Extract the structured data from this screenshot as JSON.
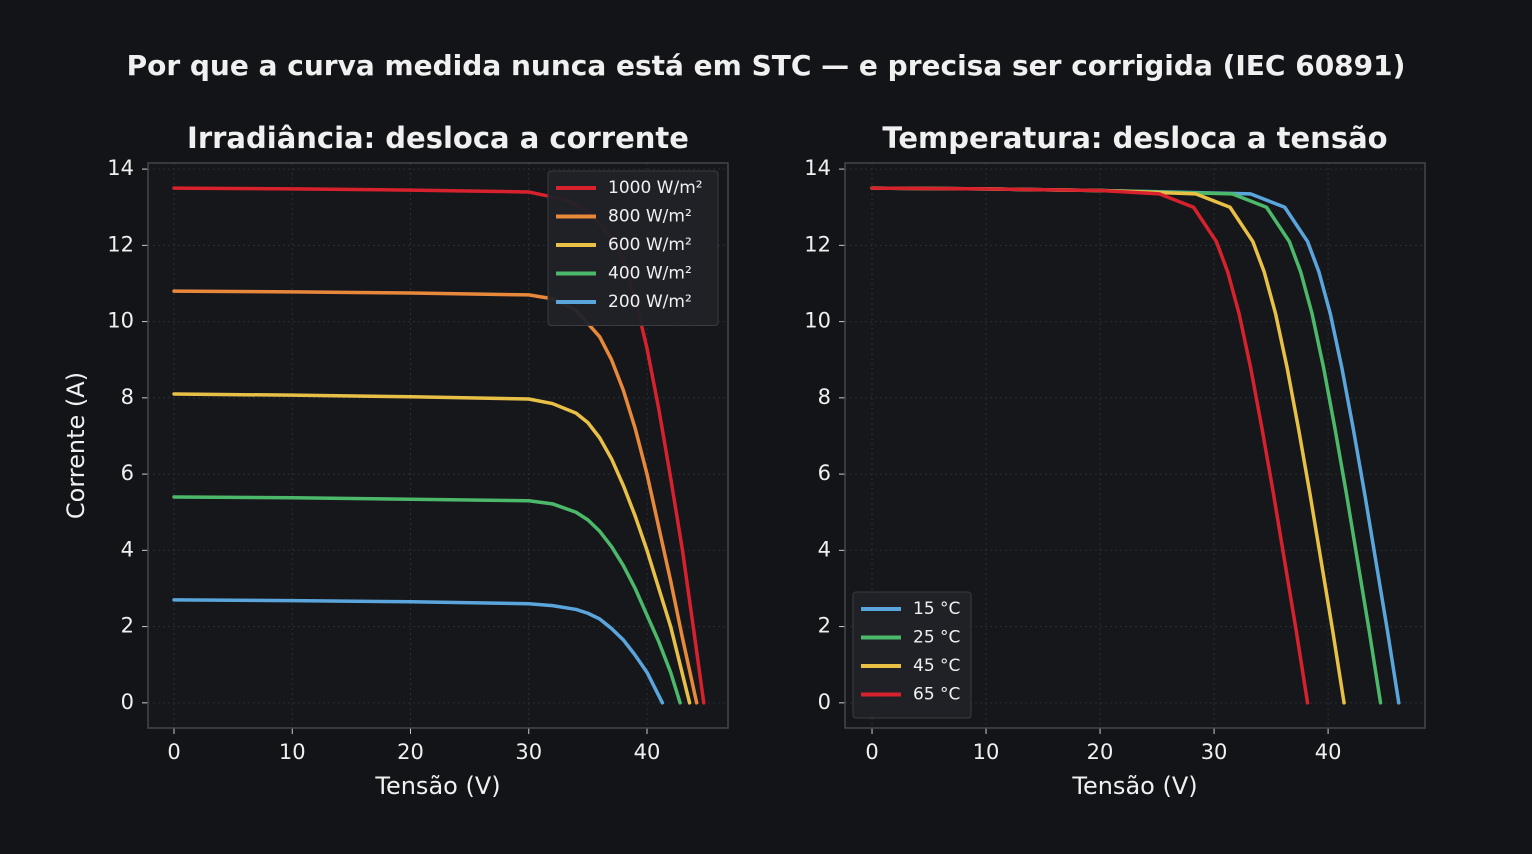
{
  "title": "Por que a curva medida nunca está em STC — e precisa ser corrigida (IEC 60891)",
  "chart_data": [
    {
      "type": "line",
      "title": "Irradiância: desloca a corrente",
      "x_label": "Tensão (V)",
      "y_label": "Corrente (A)",
      "xlim": [
        -2.2,
        46.85
      ],
      "ylim": [
        -0.66,
        14.16
      ],
      "xticks": [
        0,
        10,
        20,
        30,
        40
      ],
      "yticks": [
        0,
        2,
        4,
        6,
        8,
        10,
        12,
        14
      ],
      "grid": true,
      "legend": "upper right",
      "series": [
        {
          "name": "1000 W/m²",
          "color": "#d7222e",
          "x": [
            0,
            10,
            20,
            30,
            33,
            35,
            37,
            38,
            39,
            40,
            41,
            42,
            43,
            44,
            44.8
          ],
          "values": [
            13.5,
            13.48,
            13.45,
            13.4,
            13.2,
            12.9,
            12.2,
            11.6,
            10.6,
            9.3,
            7.7,
            5.9,
            4.0,
            1.8,
            0
          ]
        },
        {
          "name": "800 W/m²",
          "color": "#e8883a",
          "x": [
            0,
            10,
            20,
            30,
            32,
            34,
            36,
            37,
            38,
            39,
            40,
            41,
            42,
            43,
            44.2
          ],
          "values": [
            10.8,
            10.78,
            10.75,
            10.7,
            10.6,
            10.3,
            9.6,
            9.0,
            8.2,
            7.2,
            6.0,
            4.6,
            3.2,
            1.7,
            0
          ]
        },
        {
          "name": "600 W/m²",
          "color": "#e9c046",
          "x": [
            0,
            10,
            20,
            30,
            32,
            34,
            35,
            36,
            37,
            38,
            39,
            40,
            41,
            42,
            43.6
          ],
          "values": [
            8.1,
            8.07,
            8.03,
            7.97,
            7.85,
            7.6,
            7.35,
            6.95,
            6.4,
            5.7,
            4.9,
            4.0,
            3.0,
            2.0,
            0
          ]
        },
        {
          "name": "400 W/m²",
          "color": "#4cb96a",
          "x": [
            0,
            10,
            20,
            30,
            32,
            34,
            35,
            36,
            37,
            38,
            39,
            40,
            41,
            42,
            42.8
          ],
          "values": [
            5.4,
            5.38,
            5.34,
            5.3,
            5.22,
            5.0,
            4.8,
            4.5,
            4.1,
            3.6,
            3.0,
            2.3,
            1.6,
            0.8,
            0
          ]
        },
        {
          "name": "200 W/m²",
          "color": "#5aa6dc",
          "x": [
            0,
            10,
            20,
            30,
            32,
            34,
            35,
            36,
            37,
            38,
            39,
            40,
            41.3
          ],
          "values": [
            2.7,
            2.68,
            2.65,
            2.6,
            2.55,
            2.45,
            2.35,
            2.2,
            1.95,
            1.65,
            1.25,
            0.8,
            0
          ]
        }
      ]
    },
    {
      "type": "line",
      "title": "Temperatura: desloca a tensão",
      "x_label": "Tensão (V)",
      "xlim": [
        -2.37,
        48.5
      ],
      "ylim": [
        -0.66,
        14.16
      ],
      "xticks": [
        0,
        10,
        20,
        30,
        40
      ],
      "yticks": [
        0,
        2,
        4,
        6,
        8,
        10,
        12,
        14
      ],
      "grid": true,
      "legend": "lower left",
      "series": [
        {
          "name": "15 °C",
          "color": "#5aa6dc",
          "x": [
            0,
            10,
            20,
            33.2,
            36.2,
            38.2,
            39.2,
            40.2,
            41.2,
            42.2,
            43.2,
            44.2,
            45.2,
            46.2
          ],
          "values": [
            13.5,
            13.48,
            13.44,
            13.35,
            13.0,
            12.1,
            11.3,
            10.2,
            8.8,
            7.2,
            5.5,
            3.7,
            1.9,
            0
          ]
        },
        {
          "name": "25 °C",
          "color": "#4cb96a",
          "x": [
            0,
            10,
            20,
            31.6,
            34.6,
            36.6,
            37.6,
            38.6,
            39.6,
            40.6,
            41.6,
            42.6,
            43.6,
            44.6
          ],
          "values": [
            13.5,
            13.48,
            13.44,
            13.35,
            13.0,
            12.1,
            11.3,
            10.2,
            8.8,
            7.2,
            5.5,
            3.7,
            1.9,
            0
          ]
        },
        {
          "name": "45 °C",
          "color": "#e9c046",
          "x": [
            0,
            10,
            20,
            28.4,
            31.4,
            33.4,
            34.4,
            35.4,
            36.4,
            37.4,
            38.4,
            39.4,
            40.4,
            41.4
          ],
          "values": [
            13.5,
            13.48,
            13.44,
            13.35,
            13.0,
            12.1,
            11.3,
            10.2,
            8.8,
            7.2,
            5.5,
            3.7,
            1.9,
            0
          ]
        },
        {
          "name": "65 °C",
          "color": "#d7222e",
          "x": [
            0,
            10,
            20,
            25.2,
            28.2,
            30.2,
            31.2,
            32.2,
            33.2,
            34.2,
            35.2,
            36.2,
            37.2,
            38.2
          ],
          "values": [
            13.5,
            13.48,
            13.44,
            13.35,
            13.0,
            12.1,
            11.3,
            10.2,
            8.8,
            7.2,
            5.5,
            3.7,
            1.9,
            0
          ]
        }
      ]
    }
  ]
}
